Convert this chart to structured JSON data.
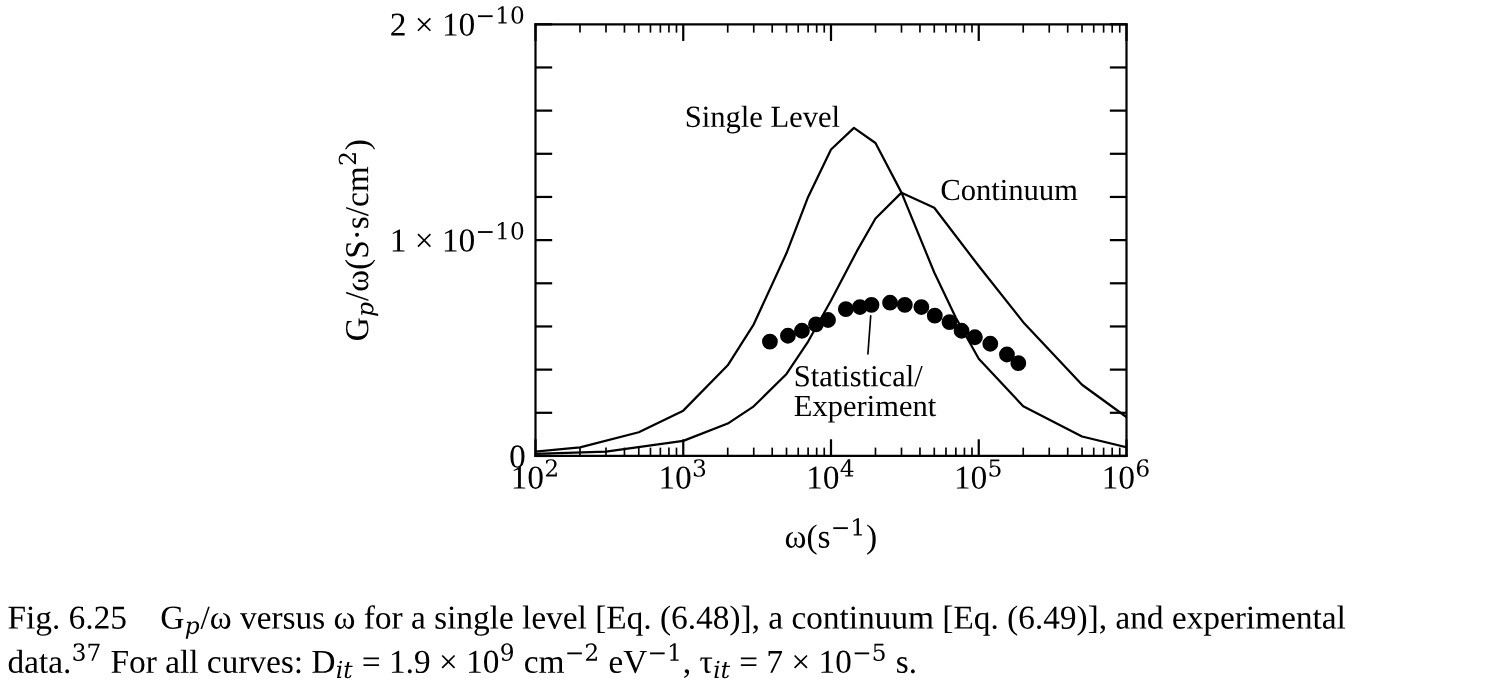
{
  "chart_data": {
    "type": "line",
    "xlabel": "ω(s$^{−1}$)",
    "ylabel": "G$_{p}$/ω(S·s/cm$^{2}$)",
    "log": "x",
    "xlim": [
      100,
      1000000
    ],
    "xticks": [
      {
        "value": 100,
        "label": "10$^{2}$"
      },
      {
        "value": 1000,
        "label": "10$^{3}$"
      },
      {
        "value": 10000,
        "label": "10$^{4}$"
      },
      {
        "value": 100000,
        "label": "10$^{5}$"
      },
      {
        "value": 1000000,
        "label": "10$^{6}$"
      }
    ],
    "ylim": [
      0,
      2e-10
    ],
    "yticks": [
      0,
      {
        "value": 2e-11,
        "label": null
      },
      {
        "value": 4e-11,
        "label": null
      },
      {
        "value": 6e-11,
        "label": null
      },
      {
        "value": 8e-11,
        "label": null
      },
      {
        "value": 1e-10,
        "label": "1 × 10$^{−10}$"
      },
      {
        "value": 1.2e-10,
        "label": null
      },
      {
        "value": 1.4e-10,
        "label": null
      },
      {
        "value": 1.6e-10,
        "label": null
      },
      {
        "value": 1.8e-10,
        "label": null
      },
      {
        "value": 2e-10,
        "label": "2 × 10$^{−10}$"
      }
    ],
    "grid": false,
    "legend": false,
    "series": [
      {
        "type": "line",
        "color": "#000000",
        "marker": "none",
        "x": [
          100,
          200,
          500,
          1000,
          2000,
          3000,
          5000,
          7000,
          10000,
          14300,
          20000,
          30000,
          50000,
          70000,
          100000,
          200000,
          500000,
          1000000
        ],
        "values": [
          2e-12,
          4e-12,
          1.1e-11,
          2.1e-11,
          4.2e-11,
          6.1e-11,
          9.4e-11,
          1.2e-10,
          1.42e-10,
          1.52e-10,
          1.45e-10,
          1.22e-10,
          8.5e-11,
          6.4e-11,
          4.5e-11,
          2.3e-11,
          9e-12,
          4e-12
        ]
      },
      {
        "type": "line",
        "color": "#000000",
        "marker": "none",
        "x": [
          100,
          300,
          1000,
          2000,
          3000,
          5000,
          7000,
          10000,
          15000,
          20000,
          30000,
          50000,
          100000,
          200000,
          500000,
          1000000
        ],
        "values": [
          1e-12,
          2e-12,
          7e-12,
          1.5e-11,
          2.3e-11,
          3.8e-11,
          5.3e-11,
          7.2e-11,
          9.5e-11,
          1.1e-10,
          1.22e-10,
          1.15e-10,
          8.8e-11,
          6.2e-11,
          3.3e-11,
          1.8e-11
        ]
      },
      {
        "type": "scatter",
        "color": "#000000",
        "marker": "circle",
        "x": [
          3860,
          5110,
          6360,
          7910,
          9550,
          12600,
          15700,
          18800,
          25100,
          31600,
          40900,
          50400,
          63400,
          76500,
          94200,
          119700,
          155200,
          185300
        ],
        "values": [
          5.3e-11,
          5.57e-11,
          5.8e-11,
          6.1e-11,
          6.3e-11,
          6.8e-11,
          6.9e-11,
          7e-11,
          7.1e-11,
          7e-11,
          6.9e-11,
          6.5e-11,
          6.2e-11,
          5.8e-11,
          5.5e-11,
          5.2e-11,
          4.7e-11,
          4.3e-11
        ]
      }
    ],
    "annotations": [
      {
        "text": "Single Level",
        "x": 14300,
        "y": 1.52e-10
      },
      {
        "text": "Continuum",
        "x": 30000,
        "y": 1.22e-10
      },
      {
        "text": "Statistical/\nExperiment",
        "x": 18800,
        "y": 7e-11
      },
      "Fig. 6.25    G$_{p}$/ω versus ω for a single level [Eq. (6.48)], a continuum [Eq. (6.49)], and experimental\ndata.$^{37}$ For all curves: D$_{it}$ = 1.9 × 10$^{9}$ cm$^{−2}$ eV$^{−1}$, τ$_{it}$ = 7 × 10$^{−5}$ s."
    ]
  }
}
